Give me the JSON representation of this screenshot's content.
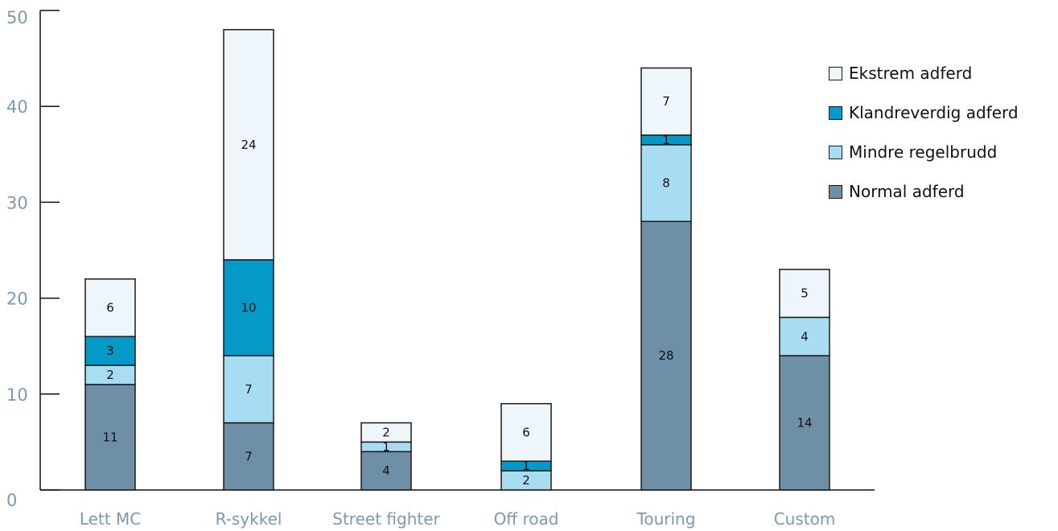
{
  "chart_data": {
    "type": "bar",
    "stacked": true,
    "categories": [
      "Lett MC",
      "R-sykkel",
      "Street fighter",
      "Off road",
      "Touring",
      "Custom"
    ],
    "series": [
      {
        "name": "Normal adferd",
        "values": [
          11,
          7,
          4,
          0,
          28,
          14
        ],
        "color": "#6e8fa5"
      },
      {
        "name": "Mindre regelbrudd",
        "values": [
          2,
          7,
          1,
          2,
          8,
          4
        ],
        "color": "#a8dcf2"
      },
      {
        "name": "Klandreverdig adferd",
        "values": [
          3,
          10,
          0,
          1,
          1,
          0
        ],
        "color": "#0599c7"
      },
      {
        "name": "Ekstrem adferd",
        "values": [
          6,
          24,
          2,
          6,
          7,
          5
        ],
        "color": "#eef6fc"
      }
    ],
    "yticks": [
      "0",
      "10",
      "20",
      "30",
      "40",
      "50"
    ],
    "ylim": [
      0,
      50
    ],
    "title": "",
    "xlabel": "",
    "ylabel": "",
    "legend_position": "right",
    "grid": false,
    "axis_color": "#7b9aad"
  }
}
